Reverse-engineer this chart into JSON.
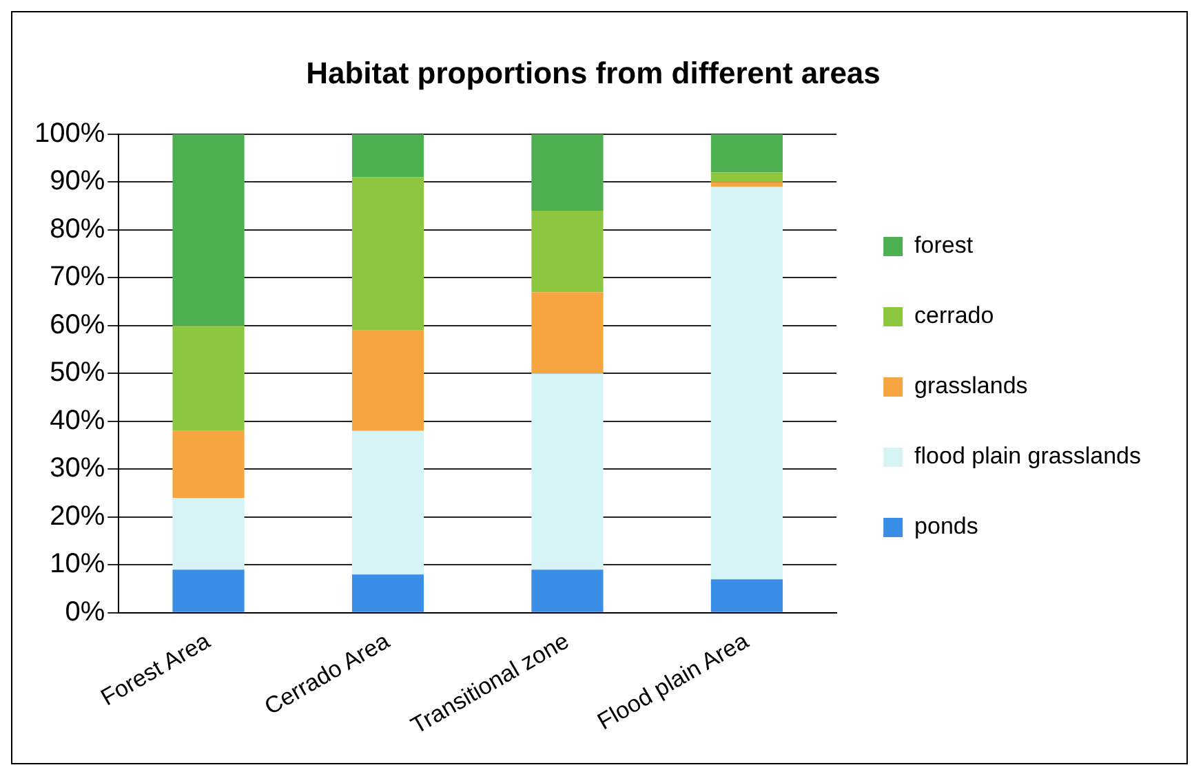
{
  "chart_data": {
    "type": "bar",
    "title": "Habitat proportions from different areas",
    "categories": [
      "Forest Area",
      "Cerrado Area",
      "Transitional zone",
      "Flood plain Area"
    ],
    "series": [
      {
        "name": "ponds",
        "color": "#3a8ee6",
        "values": [
          9,
          8,
          9,
          7
        ]
      },
      {
        "name": "flood plain grasslands",
        "color": "#d6f3f6",
        "values": [
          15,
          30,
          41,
          82
        ]
      },
      {
        "name": "grasslands",
        "color": "#f7a541",
        "values": [
          14,
          21,
          17,
          1
        ]
      },
      {
        "name": "cerrado",
        "color": "#8dc63f",
        "values": [
          22,
          32,
          17,
          2
        ]
      },
      {
        "name": "forest",
        "color": "#4caf50",
        "values": [
          40,
          9,
          16,
          8
        ]
      }
    ],
    "stacked": true,
    "ylim": [
      0,
      100
    ],
    "yticks": [
      {
        "value": 0,
        "label": "0%"
      },
      {
        "value": 10,
        "label": "10%"
      },
      {
        "value": 20,
        "label": "20%"
      },
      {
        "value": 30,
        "label": "30%"
      },
      {
        "value": 40,
        "label": "40%"
      },
      {
        "value": 50,
        "label": "50%"
      },
      {
        "value": 60,
        "label": "60%"
      },
      {
        "value": 70,
        "label": "70%"
      },
      {
        "value": 80,
        "label": "80%"
      },
      {
        "value": 90,
        "label": "90%"
      },
      {
        "value": 100,
        "label": "100%"
      }
    ],
    "grid": "y",
    "legend": "right"
  }
}
